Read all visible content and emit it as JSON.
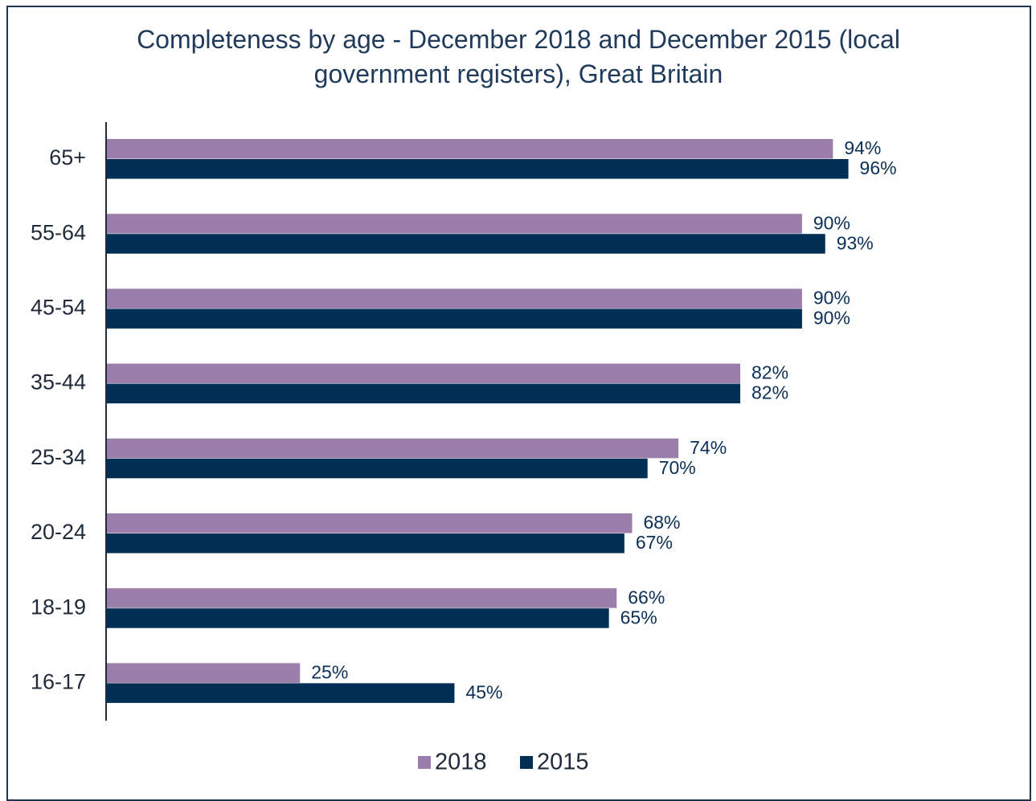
{
  "chart_data": {
    "type": "bar",
    "orientation": "horizontal",
    "title": "Completeness by age - December 2018 and December 2015 (local government registers), Great Britain",
    "categories": [
      "65+",
      "55-64",
      "45-54",
      "35-44",
      "25-34",
      "20-24",
      "18-19",
      "16-17"
    ],
    "series": [
      {
        "name": "2018",
        "color": "#9b7ea9",
        "values": [
          94,
          90,
          90,
          82,
          74,
          68,
          66,
          25
        ],
        "value_labels": [
          "94%",
          "90%",
          "90%",
          "82%",
          "74%",
          "68%",
          "66%",
          "25%"
        ]
      },
      {
        "name": "2015",
        "color": "#002f56",
        "values": [
          96,
          93,
          90,
          82,
          70,
          67,
          65,
          45
        ],
        "value_labels": [
          "96%",
          "93%",
          "90%",
          "82%",
          "70%",
          "67%",
          "65%",
          "45%"
        ]
      }
    ],
    "xlim": [
      0,
      100
    ],
    "legend": "bottom"
  }
}
